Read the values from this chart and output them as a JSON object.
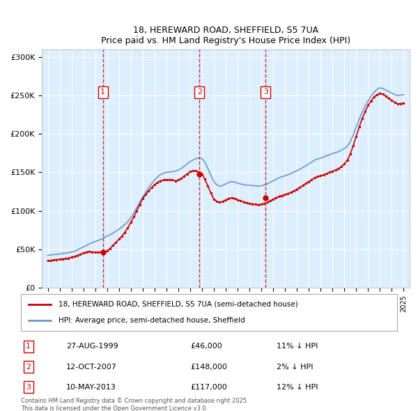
{
  "title": "18, HEREWARD ROAD, SHEFFIELD, S5 7UA",
  "subtitle": "Price paid vs. HM Land Registry's House Price Index (HPI)",
  "legend_line1": "18, HEREWARD ROAD, SHEFFIELD, S5 7UA (semi-detached house)",
  "legend_line2": "HPI: Average price, semi-detached house, Sheffield",
  "footer": "Contains HM Land Registry data © Crown copyright and database right 2025.\nThis data is licensed under the Open Government Licence v3.0.",
  "transactions": [
    {
      "num": 1,
      "date": "27-AUG-1999",
      "price": 46000,
      "pct": "11% ↓ HPI",
      "year": 1999.65
    },
    {
      "num": 2,
      "date": "12-OCT-2007",
      "price": 148000,
      "pct": "2% ↓ HPI",
      "year": 2007.78
    },
    {
      "num": 3,
      "date": "10-MAY-2013",
      "price": 117000,
      "pct": "12% ↓ HPI",
      "year": 2013.36
    }
  ],
  "hpi_data": {
    "years": [
      1995.0,
      1995.25,
      1995.5,
      1995.75,
      1996.0,
      1996.25,
      1996.5,
      1996.75,
      1997.0,
      1997.25,
      1997.5,
      1997.75,
      1998.0,
      1998.25,
      1998.5,
      1998.75,
      1999.0,
      1999.25,
      1999.5,
      1999.75,
      2000.0,
      2000.25,
      2000.5,
      2000.75,
      2001.0,
      2001.25,
      2001.5,
      2001.75,
      2002.0,
      2002.25,
      2002.5,
      2002.75,
      2003.0,
      2003.25,
      2003.5,
      2003.75,
      2004.0,
      2004.25,
      2004.5,
      2004.75,
      2005.0,
      2005.25,
      2005.5,
      2005.75,
      2006.0,
      2006.25,
      2006.5,
      2006.75,
      2007.0,
      2007.25,
      2007.5,
      2007.75,
      2008.0,
      2008.25,
      2008.5,
      2008.75,
      2009.0,
      2009.25,
      2009.5,
      2009.75,
      2010.0,
      2010.25,
      2010.5,
      2010.75,
      2011.0,
      2011.25,
      2011.5,
      2011.75,
      2012.0,
      2012.25,
      2012.5,
      2012.75,
      2013.0,
      2013.25,
      2013.5,
      2013.75,
      2014.0,
      2014.25,
      2014.5,
      2014.75,
      2015.0,
      2015.25,
      2015.5,
      2015.75,
      2016.0,
      2016.25,
      2016.5,
      2016.75,
      2017.0,
      2017.25,
      2017.5,
      2017.75,
      2018.0,
      2018.25,
      2018.5,
      2018.75,
      2019.0,
      2019.25,
      2019.5,
      2019.75,
      2020.0,
      2020.25,
      2020.5,
      2020.75,
      2021.0,
      2021.25,
      2021.5,
      2021.75,
      2022.0,
      2022.25,
      2022.5,
      2022.75,
      2023.0,
      2023.25,
      2023.5,
      2023.75,
      2024.0,
      2024.25,
      2024.5,
      2024.75,
      2025.0
    ],
    "values": [
      42000,
      42500,
      43000,
      43500,
      44000,
      44500,
      45000,
      45500,
      46500,
      47500,
      49000,
      51000,
      53000,
      55000,
      57000,
      58500,
      60000,
      61500,
      63000,
      65000,
      67000,
      69000,
      71000,
      73500,
      76000,
      79000,
      82000,
      86000,
      91000,
      97000,
      104000,
      111000,
      118000,
      124000,
      130000,
      135000,
      140000,
      144000,
      147000,
      149000,
      150000,
      150500,
      151000,
      151500,
      153000,
      155000,
      158000,
      161000,
      164000,
      166000,
      168000,
      168500,
      168000,
      163000,
      155000,
      146000,
      138000,
      134000,
      132000,
      133000,
      135000,
      137000,
      138000,
      137500,
      136000,
      135000,
      134000,
      133500,
      133000,
      133000,
      132500,
      132000,
      132500,
      133500,
      135000,
      137000,
      139000,
      141000,
      143000,
      144500,
      145500,
      147000,
      148500,
      150500,
      152000,
      154000,
      156500,
      158500,
      161000,
      163500,
      166000,
      167500,
      168500,
      170000,
      171500,
      173000,
      174500,
      175500,
      177000,
      179000,
      181000,
      184000,
      190000,
      199000,
      209000,
      219000,
      228000,
      236000,
      243000,
      249000,
      254000,
      258000,
      260000,
      259000,
      257000,
      255000,
      253000,
      251000,
      250000,
      250500,
      251000
    ]
  },
  "price_data": {
    "years": [
      1995.0,
      1995.25,
      1995.5,
      1995.75,
      1996.0,
      1996.25,
      1996.5,
      1996.75,
      1997.0,
      1997.25,
      1997.5,
      1997.75,
      1998.0,
      1998.25,
      1998.5,
      1998.75,
      1999.0,
      1999.25,
      1999.5,
      1999.75,
      2000.0,
      2000.25,
      2000.5,
      2000.75,
      2001.0,
      2001.25,
      2001.5,
      2001.75,
      2002.0,
      2002.25,
      2002.5,
      2002.75,
      2003.0,
      2003.25,
      2003.5,
      2003.75,
      2004.0,
      2004.25,
      2004.5,
      2004.75,
      2005.0,
      2005.25,
      2005.5,
      2005.75,
      2006.0,
      2006.25,
      2006.5,
      2006.75,
      2007.0,
      2007.25,
      2007.5,
      2007.75,
      2008.0,
      2008.25,
      2008.5,
      2008.75,
      2009.0,
      2009.25,
      2009.5,
      2009.75,
      2010.0,
      2010.25,
      2010.5,
      2010.75,
      2011.0,
      2011.25,
      2011.5,
      2011.75,
      2012.0,
      2012.25,
      2012.5,
      2012.75,
      2013.0,
      2013.25,
      2013.5,
      2013.75,
      2014.0,
      2014.25,
      2014.5,
      2014.75,
      2015.0,
      2015.25,
      2015.5,
      2015.75,
      2016.0,
      2016.25,
      2016.5,
      2016.75,
      2017.0,
      2017.25,
      2017.5,
      2017.75,
      2018.0,
      2018.25,
      2018.5,
      2018.75,
      2019.0,
      2019.25,
      2019.5,
      2019.75,
      2020.0,
      2020.25,
      2020.5,
      2020.75,
      2021.0,
      2021.25,
      2021.5,
      2021.75,
      2022.0,
      2022.25,
      2022.5,
      2022.75,
      2023.0,
      2023.25,
      2023.5,
      2023.75,
      2024.0,
      2024.25,
      2024.5,
      2024.75,
      2025.0
    ],
    "values": [
      35000,
      35500,
      36000,
      36500,
      37000,
      37500,
      38000,
      38500,
      39500,
      40500,
      42000,
      43500,
      45000,
      46500,
      47000,
      46500,
      46000,
      46000,
      46000,
      46000,
      48000,
      51000,
      55000,
      59000,
      63000,
      67000,
      72000,
      78000,
      85000,
      92000,
      100000,
      108000,
      116000,
      121000,
      126000,
      130000,
      134000,
      137000,
      139000,
      140000,
      140500,
      140500,
      140000,
      139000,
      140000,
      142000,
      145000,
      148000,
      151000,
      152000,
      152000,
      150000,
      148000,
      141000,
      132000,
      123000,
      115000,
      112000,
      111000,
      112000,
      114000,
      116000,
      117000,
      116000,
      114500,
      113000,
      111500,
      110500,
      109500,
      109000,
      108500,
      108000,
      108500,
      109500,
      111000,
      113000,
      115000,
      117000,
      119000,
      120000,
      121000,
      122500,
      124000,
      126000,
      128000,
      130500,
      133000,
      135500,
      138000,
      140500,
      143000,
      144500,
      145500,
      147000,
      148500,
      150000,
      151500,
      153000,
      155000,
      157500,
      161000,
      166000,
      174000,
      185000,
      197000,
      209000,
      220000,
      229000,
      237000,
      243000,
      248000,
      251000,
      253000,
      251500,
      249000,
      246000,
      243500,
      241000,
      239000,
      239500,
      240000
    ]
  },
  "ylim": [
    0,
    310000
  ],
  "xlim": [
    1994.5,
    2025.5
  ],
  "yticks": [
    0,
    50000,
    100000,
    150000,
    200000,
    250000,
    300000
  ],
  "ytick_labels": [
    "£0",
    "£50K",
    "£100K",
    "£150K",
    "£200K",
    "£250K",
    "£300K"
  ],
  "xticks": [
    1995,
    1996,
    1997,
    1998,
    1999,
    2000,
    2001,
    2002,
    2003,
    2004,
    2005,
    2006,
    2007,
    2008,
    2009,
    2010,
    2011,
    2012,
    2013,
    2014,
    2015,
    2016,
    2017,
    2018,
    2019,
    2020,
    2021,
    2022,
    2023,
    2024,
    2025
  ],
  "red_color": "#cc0000",
  "blue_color": "#6699cc",
  "bg_color": "#ddeeff",
  "marker_box_color": "#cc0000",
  "grid_color": "#ffffff",
  "plot_bg": "#ddeeff"
}
